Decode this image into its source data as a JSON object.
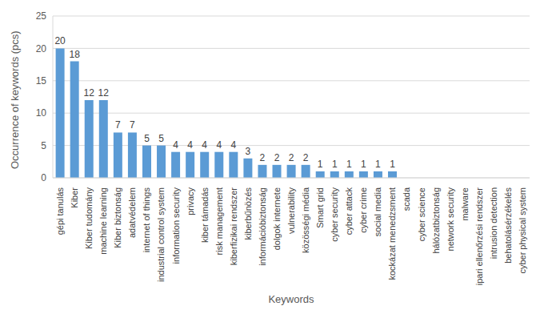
{
  "chart_data": {
    "type": "bar",
    "x_label": "Keywords",
    "y_label": "Occurrence of keywords (pcs)",
    "categories": [
      "gépi tanulás",
      "Kiber",
      "Kiber tudomány",
      "machine learning",
      "Kiber biztonság",
      "adatvédelem",
      "internet of things",
      "industrial control system",
      "information security",
      "privacy",
      "kiber támadás",
      "risk management",
      "kiberfizikai rendszer",
      "kiberbűnözés",
      "információbiztonság",
      "dolgok internete",
      "vulnerability",
      "közösségi média",
      "Smart grid",
      "cyber security",
      "cyber attack",
      "cyber crime",
      "social media",
      "kockázat menedzsment",
      "scada",
      "cyber science",
      "hálózatbiztonság",
      "network security",
      "malware",
      "ipari ellenőrzési rendszer",
      "intrusion detection",
      "behatolásérzékelés",
      "cyber physical system"
    ],
    "values": [
      20,
      18,
      12,
      12,
      7,
      7,
      5,
      5,
      4,
      4,
      4,
      4,
      4,
      3,
      2,
      2,
      2,
      2,
      1,
      1,
      1,
      1,
      1,
      1,
      0,
      0,
      0,
      0,
      0,
      0,
      0,
      0,
      0
    ],
    "color": "#5b9bd5",
    "ylim": [
      0,
      25
    ],
    "yticks": [
      0,
      5,
      10,
      15,
      20,
      25
    ],
    "grid": true,
    "data_labels": true
  }
}
